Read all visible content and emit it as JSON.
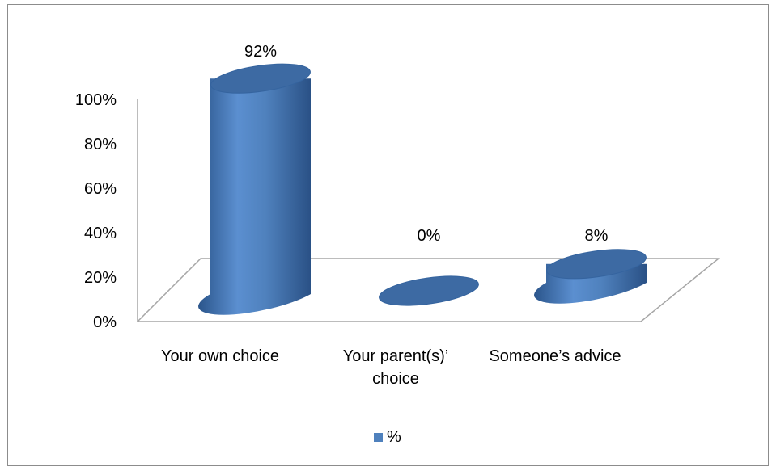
{
  "chart_data": {
    "type": "bar",
    "style": "3d-cylinder",
    "categories": [
      [
        "Your own choice"
      ],
      [
        "Your parent(s)’",
        "choice"
      ],
      [
        "Someone’s advice"
      ]
    ],
    "series": [
      {
        "name": "%",
        "values": [
          92,
          0,
          8
        ],
        "labels": [
          "92%",
          "0%",
          "8%"
        ]
      }
    ],
    "ylim": [
      0,
      100
    ],
    "yticks": [
      0,
      20,
      40,
      60,
      80,
      100
    ],
    "ytick_labels": [
      "0%",
      "20%",
      "40%",
      "60%",
      "80%",
      "100%"
    ],
    "title": "",
    "xlabel": "",
    "ylabel": "",
    "grid": false,
    "legend": {
      "position": "bottom",
      "entries": [
        "%"
      ]
    },
    "colors": {
      "bar": "#4f81bd",
      "bar_dark": "#2e5c95",
      "bar_top": "#3d6aa3",
      "axis": "#a6a6a6"
    }
  }
}
